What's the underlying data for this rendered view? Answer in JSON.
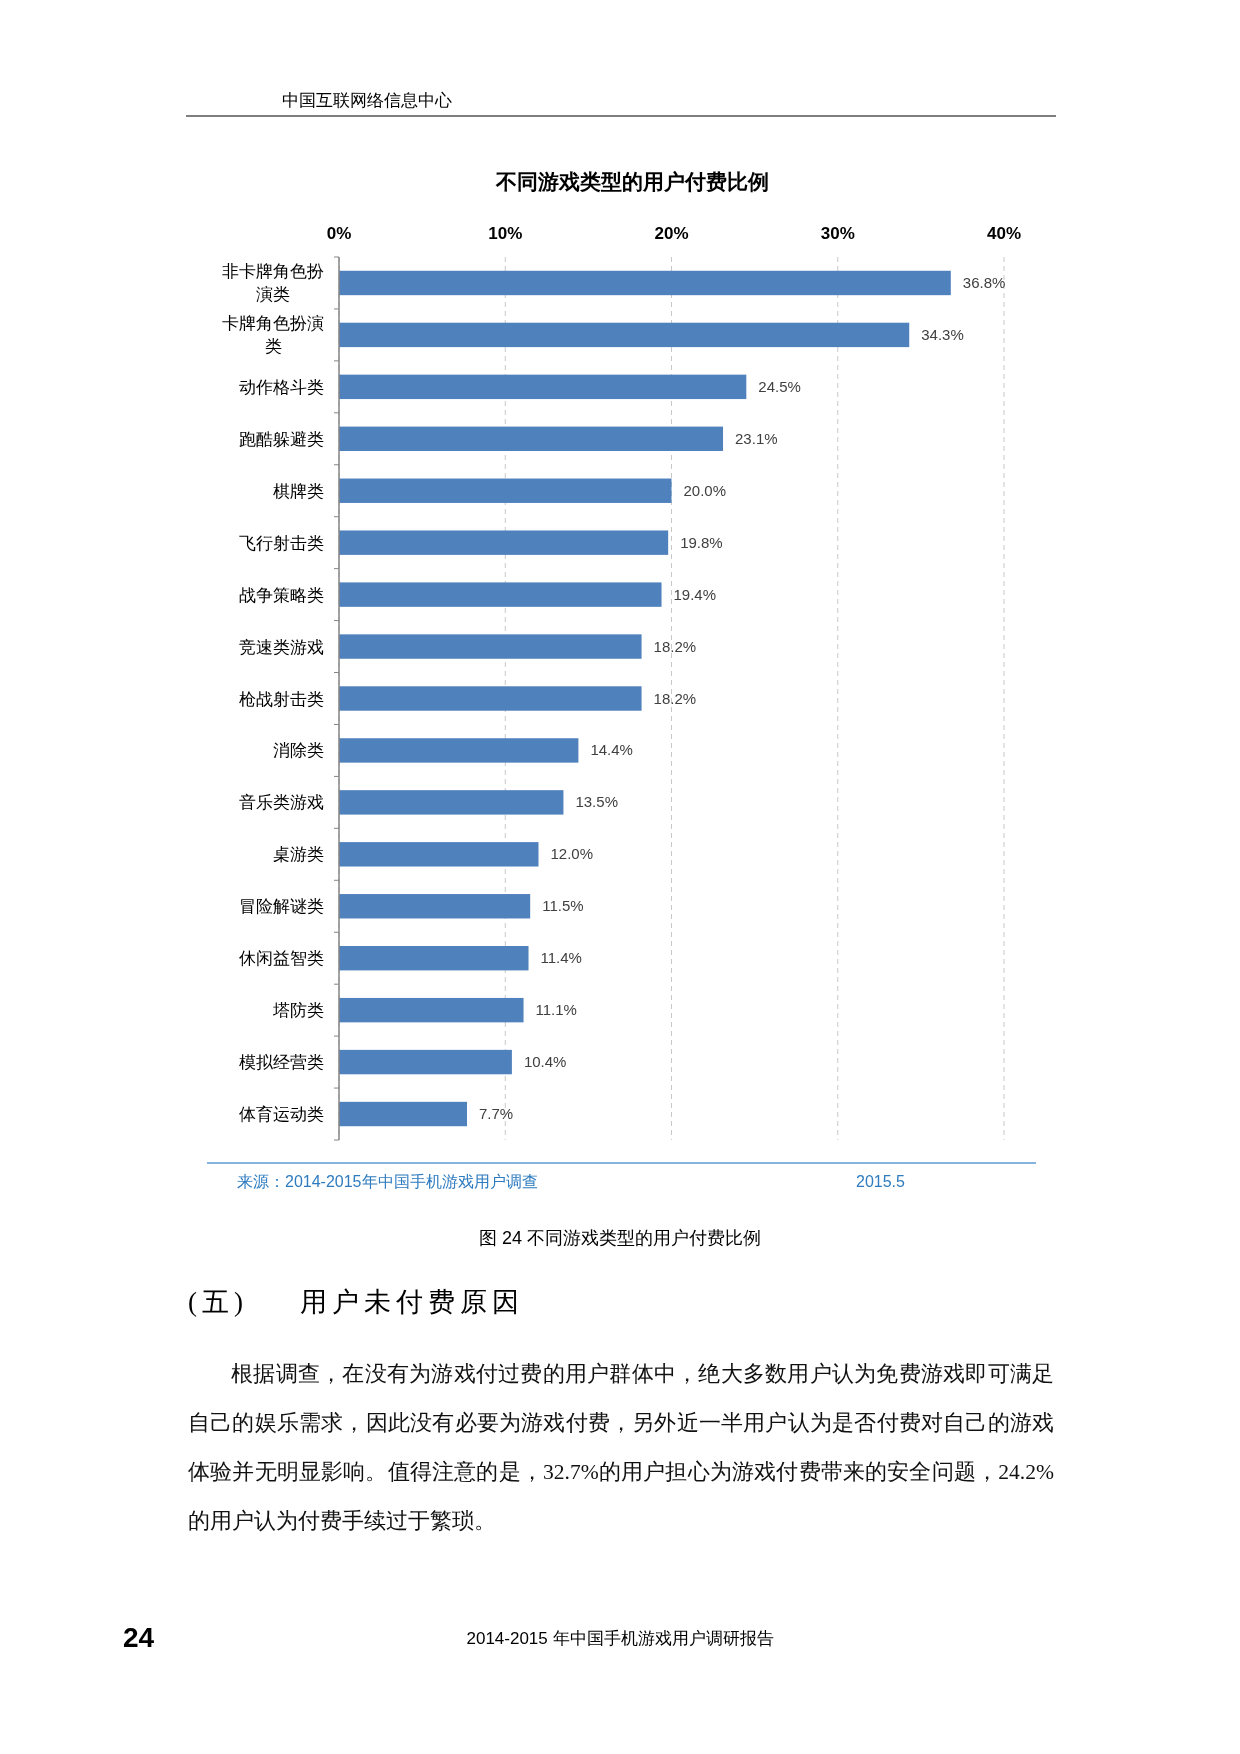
{
  "chart_data": {
    "type": "bar",
    "orientation": "horizontal",
    "title": "不同游戏类型的用户付费比例",
    "categories": [
      "非卡牌角色扮演类",
      "卡牌角色扮演类",
      "动作格斗类",
      "跑酷躲避类",
      "棋牌类",
      "飞行射击类",
      "战争策略类",
      "竞速类游戏",
      "枪战射击类",
      "消除类",
      "音乐类游戏",
      "桌游类",
      "冒险解谜类",
      "休闲益智类",
      "塔防类",
      "模拟经营类",
      "体育运动类"
    ],
    "values": [
      36.8,
      34.3,
      24.5,
      23.1,
      20.0,
      19.8,
      19.4,
      18.2,
      18.2,
      14.4,
      13.5,
      12.0,
      11.5,
      11.4,
      11.1,
      10.4,
      7.7
    ],
    "value_labels": [
      "36.8%",
      "34.3%",
      "24.5%",
      "23.1%",
      "20.0%",
      "19.8%",
      "19.4%",
      "18.2%",
      "18.2%",
      "14.4%",
      "13.5%",
      "12.0%",
      "11.5%",
      "11.4%",
      "11.1%",
      "10.4%",
      "7.7%"
    ],
    "color": "#4f81bd",
    "xlim": [
      0,
      40
    ],
    "xticks": [
      {
        "value": 0,
        "label": "0%"
      },
      {
        "value": 10,
        "label": "10%"
      },
      {
        "value": 20,
        "label": "20%"
      },
      {
        "value": 30,
        "label": "30%"
      },
      {
        "value": 40,
        "label": "40%"
      }
    ],
    "grid": "x",
    "annotations": [
      "中国互联网络信息中心",
      "来源：2014-2015年中国手机游戏用户调查",
      "2015.5",
      "图 24 不同游戏类型的用户付费比例",
      "(五) 用户未付费原因",
      "根据调查，在没有为游戏付过费的用户群体中，绝大多数用户认为免费游戏即可满足自己的娱乐需求，因此没有必要为游戏付费，另外近一半用户认为是否付费对自己的游戏体验并无明显影响。值得注意的是，32.7%的用户担心为游戏付费带来的安全问题，24.2%的用户认为付费手续过于繁琐。",
      "24",
      "2014-2015 年中国手机游戏用户调研报告"
    ]
  }
}
